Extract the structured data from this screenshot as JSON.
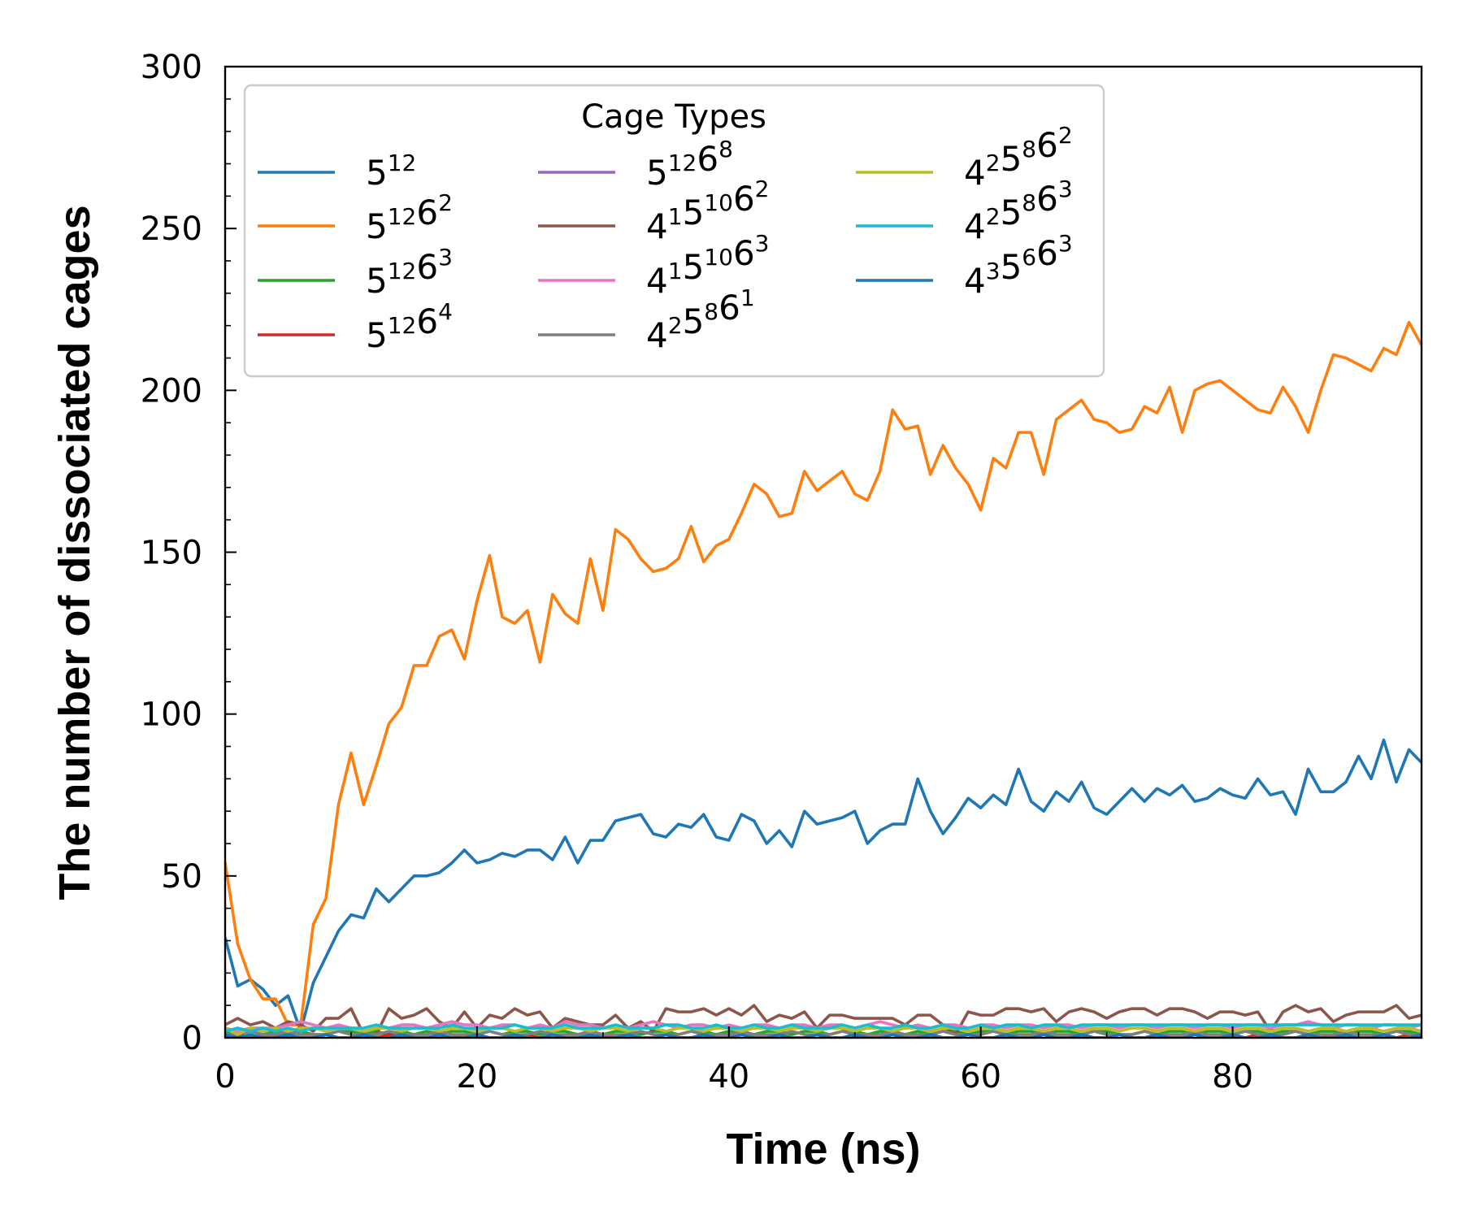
{
  "chart_data": {
    "type": "line",
    "xlabel": "Time (ns)",
    "ylabel": "The number of dissociated cages",
    "xlim": [
      0,
      95
    ],
    "ylim": [
      0,
      300
    ],
    "xticks": [
      0,
      20,
      40,
      60,
      80
    ],
    "yticks": [
      0,
      50,
      100,
      150,
      200,
      250,
      300
    ],
    "grid": false,
    "legend": {
      "title": "Cage Types",
      "placement": "top-left",
      "columns": 3
    },
    "x": [
      0,
      1,
      2,
      3,
      4,
      5,
      6,
      7,
      8,
      9,
      10,
      11,
      12,
      13,
      14,
      15,
      16,
      17,
      18,
      19,
      20,
      21,
      22,
      23,
      24,
      25,
      26,
      27,
      28,
      29,
      30,
      31,
      32,
      33,
      34,
      35,
      36,
      37,
      38,
      39,
      40,
      41,
      42,
      43,
      44,
      45,
      46,
      47,
      48,
      49,
      50,
      51,
      52,
      53,
      54,
      55,
      56,
      57,
      58,
      59,
      60,
      61,
      62,
      63,
      64,
      65,
      66,
      67,
      68,
      69,
      70,
      71,
      72,
      73,
      74,
      75,
      76,
      77,
      78,
      79,
      80,
      81,
      82,
      83,
      84,
      85,
      86,
      87,
      88,
      89,
      90,
      91,
      92,
      93,
      94,
      95
    ],
    "series": [
      {
        "name": "5¹²",
        "base": "5",
        "sup": "12",
        "color": "#1f77b4",
        "values": [
          31,
          16,
          18,
          15,
          10,
          13,
          2,
          17,
          25,
          33,
          38,
          37,
          46,
          42,
          46,
          50,
          50,
          51,
          54,
          58,
          54,
          55,
          57,
          56,
          58,
          58,
          55,
          62,
          54,
          61,
          61,
          67,
          68,
          69,
          63,
          62,
          66,
          65,
          69,
          62,
          61,
          69,
          67,
          60,
          64,
          59,
          70,
          66,
          67,
          68,
          70,
          60,
          64,
          66,
          66,
          80,
          70,
          63,
          68,
          74,
          71,
          75,
          72,
          83,
          73,
          70,
          76,
          73,
          79,
          71,
          69,
          73,
          77,
          73,
          77,
          75,
          78,
          73,
          74,
          77,
          75,
          74,
          80,
          75,
          76,
          69,
          83,
          76,
          76,
          79,
          87,
          80,
          92,
          79,
          89,
          85
        ]
      },
      {
        "name": "5¹²6²",
        "base": "5",
        "sup": "12",
        "base2": "6",
        "sup2": "2",
        "color": "#ff7f0e",
        "values": [
          54,
          29,
          18,
          12,
          12,
          4,
          4,
          35,
          43,
          72,
          88,
          72,
          84,
          97,
          102,
          115,
          115,
          124,
          126,
          117,
          135,
          149,
          130,
          128,
          132,
          116,
          137,
          131,
          128,
          148,
          132,
          157,
          154,
          148,
          144,
          145,
          148,
          158,
          147,
          152,
          154,
          162,
          171,
          168,
          161,
          162,
          175,
          169,
          172,
          175,
          168,
          166,
          175,
          194,
          188,
          189,
          174,
          183,
          176,
          171,
          163,
          179,
          176,
          187,
          187,
          174,
          191,
          194,
          197,
          191,
          190,
          187,
          188,
          195,
          193,
          201,
          187,
          200,
          202,
          203,
          200,
          197,
          194,
          193,
          201,
          195,
          187,
          200,
          211,
          210,
          208,
          206,
          213,
          211,
          221,
          214
        ]
      },
      {
        "name": "5¹²6³",
        "color": "#2ca02c",
        "values": [
          2,
          1,
          2,
          1,
          2,
          1,
          2,
          1,
          1,
          2,
          2,
          1,
          2,
          1,
          2,
          1,
          2,
          1,
          2,
          2,
          1,
          2,
          1,
          2,
          2,
          1,
          2,
          2,
          1,
          2,
          1,
          2,
          2,
          1,
          2,
          2,
          1,
          2,
          2,
          1,
          2,
          2,
          1,
          2,
          2,
          1,
          2,
          2,
          1,
          2,
          2,
          1,
          2,
          2,
          1,
          2,
          1,
          2,
          2,
          1,
          2,
          2,
          1,
          2,
          2,
          1,
          2,
          2,
          1,
          2,
          2,
          1,
          1,
          2,
          1,
          2,
          2,
          1,
          2,
          2,
          1,
          2,
          2,
          1,
          2,
          2,
          1,
          2,
          2,
          1,
          2,
          2,
          1,
          2,
          2,
          1
        ]
      },
      {
        "name": "5¹²6⁴",
        "color": "#d62728",
        "values": [
          0,
          1,
          0,
          0,
          1,
          0,
          0,
          0,
          1,
          0,
          0,
          0,
          0,
          1,
          0,
          0,
          0,
          0,
          0,
          1,
          0,
          0,
          0,
          0,
          1,
          0,
          0,
          0,
          0,
          0,
          1,
          0,
          0,
          0,
          0,
          1,
          0,
          0,
          0,
          0,
          0,
          1,
          0,
          0,
          0,
          0,
          0,
          1,
          0,
          0,
          0,
          0,
          0,
          1,
          0,
          0,
          0,
          0,
          0,
          1,
          0,
          0,
          0,
          0,
          0,
          1,
          0,
          0,
          0,
          0,
          0,
          1,
          0,
          0,
          0,
          0,
          0,
          1,
          0,
          0,
          0,
          0,
          1,
          0,
          0,
          0,
          0,
          0,
          1,
          0,
          0,
          0,
          0,
          0,
          1,
          0
        ]
      },
      {
        "name": "5¹²6⁸",
        "color": "#9467bd",
        "values": [
          1,
          0,
          0,
          1,
          0,
          1,
          0,
          0,
          1,
          0,
          0,
          1,
          0,
          0,
          1,
          0,
          0,
          1,
          0,
          0,
          1,
          0,
          0,
          1,
          0,
          0,
          1,
          0,
          0,
          1,
          0,
          0,
          1,
          0,
          0,
          1,
          0,
          0,
          1,
          0,
          0,
          1,
          0,
          0,
          1,
          0,
          0,
          1,
          0,
          0,
          1,
          0,
          0,
          1,
          0,
          0,
          1,
          0,
          0,
          1,
          0,
          0,
          1,
          0,
          0,
          1,
          0,
          0,
          1,
          0,
          0,
          1,
          0,
          0,
          1,
          0,
          0,
          1,
          0,
          0,
          1,
          0,
          0,
          1,
          0,
          0,
          1,
          0,
          0,
          1,
          0,
          0,
          1,
          0,
          0,
          1
        ]
      },
      {
        "name": "4¹5¹⁰6²",
        "color": "#8c564b",
        "values": [
          4,
          6,
          4,
          5,
          3,
          5,
          4,
          2,
          6,
          6,
          9,
          1,
          1,
          9,
          6,
          7,
          9,
          5,
          3,
          8,
          3,
          7,
          6,
          9,
          7,
          8,
          3,
          6,
          5,
          4,
          4,
          7,
          3,
          5,
          2,
          9,
          8,
          8,
          9,
          7,
          9,
          7,
          10,
          5,
          7,
          6,
          8,
          3,
          7,
          7,
          6,
          6,
          6,
          6,
          4,
          7,
          7,
          4,
          1,
          8,
          7,
          7,
          9,
          9,
          8,
          9,
          5,
          8,
          9,
          8,
          6,
          8,
          9,
          9,
          7,
          9,
          9,
          8,
          6,
          8,
          8,
          7,
          8,
          2,
          8,
          10,
          8,
          9,
          5,
          7,
          8,
          8,
          8,
          10,
          6,
          7
        ]
      },
      {
        "name": "4¹5¹⁰6³",
        "color": "#e377c2",
        "values": [
          3,
          2,
          3,
          3,
          3,
          4,
          5,
          4,
          3,
          4,
          3,
          2,
          3,
          3,
          4,
          4,
          3,
          4,
          5,
          4,
          4,
          3,
          4,
          4,
          3,
          4,
          3,
          5,
          4,
          4,
          3,
          4,
          3,
          4,
          5,
          4,
          3,
          4,
          4,
          3,
          4,
          3,
          4,
          4,
          3,
          4,
          4,
          3,
          4,
          4,
          3,
          4,
          5,
          4,
          3,
          4,
          3,
          4,
          4,
          3,
          4,
          4,
          3,
          4,
          4,
          3,
          4,
          4,
          3,
          4,
          4,
          3,
          4,
          4,
          3,
          4,
          4,
          3,
          4,
          4,
          3,
          4,
          4,
          3,
          4,
          4,
          5,
          4,
          3,
          4,
          4,
          3,
          4,
          4,
          3,
          4
        ]
      },
      {
        "name": "4²5⁸6¹",
        "color": "#7f7f7f",
        "values": [
          1,
          1,
          2,
          1,
          1,
          2,
          1,
          1,
          1,
          2,
          1,
          1,
          1,
          2,
          1,
          1,
          1,
          2,
          1,
          1,
          1,
          2,
          1,
          1,
          1,
          2,
          1,
          1,
          1,
          2,
          1,
          1,
          1,
          2,
          1,
          1,
          1,
          2,
          1,
          1,
          1,
          2,
          1,
          1,
          1,
          2,
          1,
          1,
          1,
          2,
          1,
          1,
          1,
          2,
          1,
          1,
          1,
          2,
          1,
          1,
          1,
          2,
          1,
          1,
          1,
          2,
          1,
          1,
          1,
          2,
          1,
          1,
          1,
          2,
          1,
          1,
          1,
          2,
          1,
          1,
          1,
          2,
          1,
          1,
          1,
          2,
          1,
          1,
          1,
          2,
          1,
          1,
          1,
          2,
          1,
          1
        ]
      },
      {
        "name": "4²5⁸6²",
        "color": "#bcbd22",
        "values": [
          3,
          1,
          3,
          2,
          3,
          2,
          3,
          3,
          2,
          3,
          3,
          2,
          3,
          3,
          2,
          3,
          3,
          2,
          3,
          3,
          2,
          3,
          3,
          2,
          3,
          3,
          2,
          3,
          3,
          2,
          3,
          3,
          2,
          3,
          3,
          2,
          3,
          3,
          2,
          3,
          3,
          2,
          3,
          3,
          2,
          3,
          3,
          2,
          3,
          3,
          2,
          3,
          3,
          2,
          3,
          3,
          2,
          3,
          3,
          2,
          3,
          3,
          2,
          3,
          3,
          2,
          3,
          3,
          2,
          3,
          3,
          2,
          3,
          3,
          2,
          3,
          3,
          2,
          3,
          3,
          2,
          3,
          3,
          2,
          3,
          3,
          2,
          3,
          3,
          2,
          3,
          3,
          2,
          3,
          3,
          2
        ]
      },
      {
        "name": "4²5⁸6³",
        "color": "#17becf",
        "values": [
          2,
          3,
          2,
          3,
          2,
          3,
          2,
          3,
          3,
          3,
          3,
          3,
          4,
          3,
          3,
          3,
          3,
          3,
          4,
          3,
          3,
          3,
          3,
          4,
          3,
          3,
          3,
          4,
          3,
          3,
          3,
          4,
          3,
          3,
          3,
          4,
          4,
          3,
          3,
          4,
          3,
          3,
          4,
          3,
          3,
          4,
          3,
          3,
          3,
          4,
          3,
          4,
          3,
          3,
          4,
          3,
          3,
          4,
          3,
          3,
          4,
          3,
          4,
          4,
          3,
          4,
          4,
          3,
          4,
          4,
          4,
          4,
          4,
          4,
          4,
          4,
          4,
          4,
          4,
          4,
          4,
          4,
          4,
          4,
          4,
          4,
          4,
          4,
          4,
          4,
          4,
          4,
          4,
          4,
          4,
          4
        ]
      },
      {
        "name": "4³5⁶6³",
        "color": "#1f77b4",
        "values": [
          1,
          0,
          1,
          0,
          0,
          1,
          0,
          0,
          1,
          0,
          0,
          1,
          0,
          0,
          1,
          0,
          0,
          1,
          0,
          0,
          1,
          0,
          0,
          1,
          0,
          0,
          1,
          0,
          0,
          1,
          0,
          0,
          1,
          0,
          0,
          1,
          0,
          0,
          1,
          0,
          0,
          1,
          0,
          0,
          1,
          0,
          0,
          1,
          0,
          0,
          1,
          0,
          0,
          1,
          0,
          0,
          1,
          0,
          0,
          1,
          0,
          0,
          1,
          0,
          0,
          1,
          0,
          0,
          1,
          0,
          0,
          1,
          0,
          0,
          1,
          0,
          0,
          1,
          0,
          0,
          1,
          0,
          0,
          1,
          0,
          0,
          1,
          0,
          0,
          1,
          0,
          0,
          1,
          0,
          0,
          1
        ]
      }
    ],
    "legend_entries": [
      {
        "parts": [
          [
            "5",
            "12"
          ]
        ]
      },
      {
        "parts": [
          [
            "5",
            "12"
          ],
          [
            "6",
            "2"
          ]
        ]
      },
      {
        "parts": [
          [
            "5",
            "12"
          ],
          [
            "6",
            "3"
          ]
        ]
      },
      {
        "parts": [
          [
            "5",
            "12"
          ],
          [
            "6",
            "4"
          ]
        ]
      },
      {
        "parts": [
          [
            "5",
            "12"
          ],
          [
            "6",
            "8"
          ]
        ]
      },
      {
        "parts": [
          [
            "4",
            "1"
          ],
          [
            "5",
            "10"
          ],
          [
            "6",
            "2"
          ]
        ]
      },
      {
        "parts": [
          [
            "4",
            "1"
          ],
          [
            "5",
            "10"
          ],
          [
            "6",
            "3"
          ]
        ]
      },
      {
        "parts": [
          [
            "4",
            "2"
          ],
          [
            "5",
            "8"
          ],
          [
            "6",
            "1"
          ]
        ]
      },
      {
        "parts": [
          [
            "4",
            "2"
          ],
          [
            "5",
            "8"
          ],
          [
            "6",
            "2"
          ]
        ]
      },
      {
        "parts": [
          [
            "4",
            "2"
          ],
          [
            "5",
            "8"
          ],
          [
            "6",
            "3"
          ]
        ]
      },
      {
        "parts": [
          [
            "4",
            "3"
          ],
          [
            "5",
            "6"
          ],
          [
            "6",
            "3"
          ]
        ]
      }
    ]
  }
}
